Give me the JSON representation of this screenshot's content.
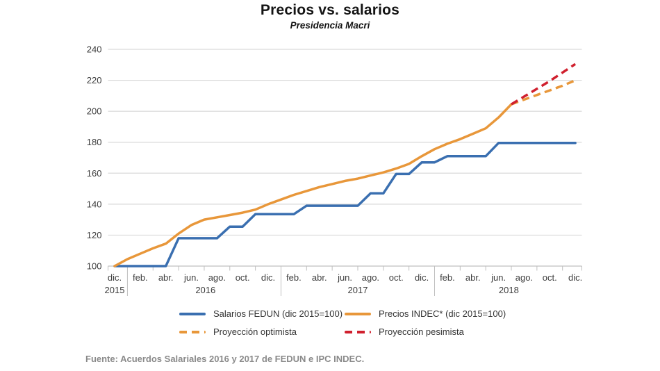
{
  "header": {
    "title": "Precios vs. salarios",
    "subtitle": "Presidencia Macri"
  },
  "source": "Fuente: Acuerdos Salariales 2016 y 2017 de FEDUN e IPC INDEC.",
  "chart_data": {
    "type": "line",
    "title": "Precios vs. salarios",
    "subtitle": "Presidencia Macri",
    "x_unit": "month index from dic. 2015 (0) to dic. 2018 (36)",
    "x_tick_labels": [
      "dic.",
      "feb.",
      "abr.",
      "jun.",
      "ago.",
      "oct.",
      "dic.",
      "feb.",
      "abr.",
      "jun.",
      "ago.",
      "oct.",
      "dic.",
      "feb.",
      "abr.",
      "jun.",
      "ago.",
      "oct.",
      "dic."
    ],
    "year_labels": [
      {
        "text": "2015",
        "month": 0
      },
      {
        "text": "2016",
        "month": 7.1
      },
      {
        "text": "2017",
        "month": 19
      },
      {
        "text": "2018",
        "month": 30.8
      }
    ],
    "y_ticks": [
      240,
      220,
      200,
      180,
      160,
      140,
      120,
      100
    ],
    "ylim": [
      100,
      240
    ],
    "grid": "horizontal",
    "legend_position": "bottom",
    "grid_color": "#d9d9d9",
    "axis_color": "#bfbfbf",
    "axis_text_color": "#3d3d3d",
    "series": [
      {
        "name": "Salarios FEDUN (dic 2015=100)",
        "color": "#3a6fb0",
        "style": "solid",
        "start_month": 0,
        "values": [
          100,
          100,
          100,
          100,
          100,
          118,
          118,
          118,
          118,
          125.5,
          125.5,
          133.5,
          133.5,
          133.5,
          133.5,
          139,
          139,
          139,
          139,
          139,
          147,
          147,
          159.5,
          159.5,
          167,
          167,
          171,
          171,
          171,
          171,
          179.5,
          179.5,
          179.5,
          179.5,
          179.5,
          179.5,
          179.5
        ]
      },
      {
        "name": "Precios INDEC* (dic 2015=100)",
        "color": "#e8973a",
        "style": "solid",
        "start_month": 0,
        "values": [
          100,
          104.5,
          108,
          111.5,
          114.5,
          121,
          126.5,
          130,
          131.5,
          133,
          134.5,
          136.5,
          140,
          143,
          146,
          148.5,
          151,
          153,
          155,
          156.5,
          158.5,
          160.5,
          163,
          166,
          171,
          175.5,
          179,
          182,
          185.5,
          189,
          196,
          204.5
        ]
      },
      {
        "name": "Proyección optimista",
        "color": "#e8973a",
        "style": "dashed",
        "start_month": 31,
        "values": [
          204.5,
          207.5,
          210.5,
          213.5,
          216.5,
          220
        ]
      },
      {
        "name": "Proyección pesimista",
        "color": "#d0202e",
        "style": "dashed",
        "start_month": 31,
        "values": [
          204.5,
          209.5,
          214.5,
          219.5,
          225,
          230.5
        ]
      }
    ]
  }
}
